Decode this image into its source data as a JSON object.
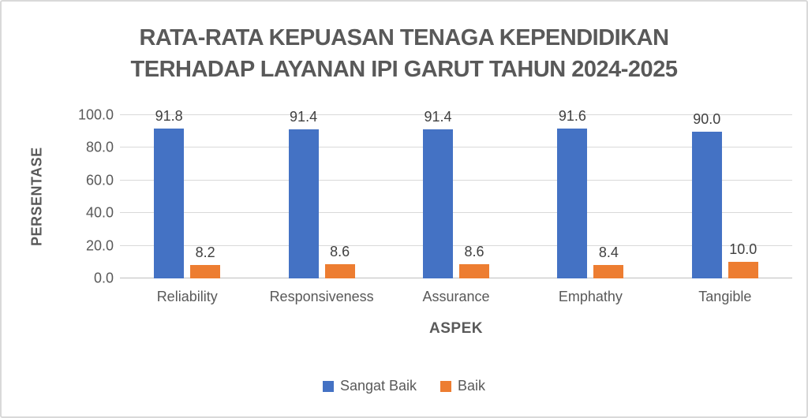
{
  "chart_data": {
    "type": "bar",
    "title": "RATA-RATA KEPUASAN TENAGA KEPENDIDIKAN TERHADAP LAYANAN IPI GARUT TAHUN 2024-2025",
    "xlabel": "ASPEK",
    "ylabel": "PERSENTASE",
    "categories": [
      "Reliability",
      "Responsiveness",
      "Assurance",
      "Emphathy",
      "Tangible"
    ],
    "series": [
      {
        "name": "Sangat Baik",
        "color": "#4472C4",
        "values": [
          91.8,
          91.4,
          91.4,
          91.6,
          90.0
        ]
      },
      {
        "name": "Baik",
        "color": "#ED7D31",
        "values": [
          8.2,
          8.6,
          8.6,
          8.4,
          10.0
        ]
      }
    ],
    "ylim": [
      0,
      100
    ],
    "yticks": [
      0.0,
      20.0,
      40.0,
      60.0,
      80.0,
      100.0
    ],
    "ytick_labels": [
      "0.0",
      "20.0",
      "40.0",
      "60.0",
      "80.0",
      "100.0"
    ],
    "grid": true,
    "data_labels": true,
    "legend_position": "bottom"
  },
  "colors": {
    "series_sangat_baik": "#4472C4",
    "series_baik": "#ED7D31",
    "title_text": "#595959",
    "axis_text": "#595959",
    "data_label_text": "#404040",
    "gridline": "#D9D9D9",
    "frame_border": "#D9D9D9"
  }
}
